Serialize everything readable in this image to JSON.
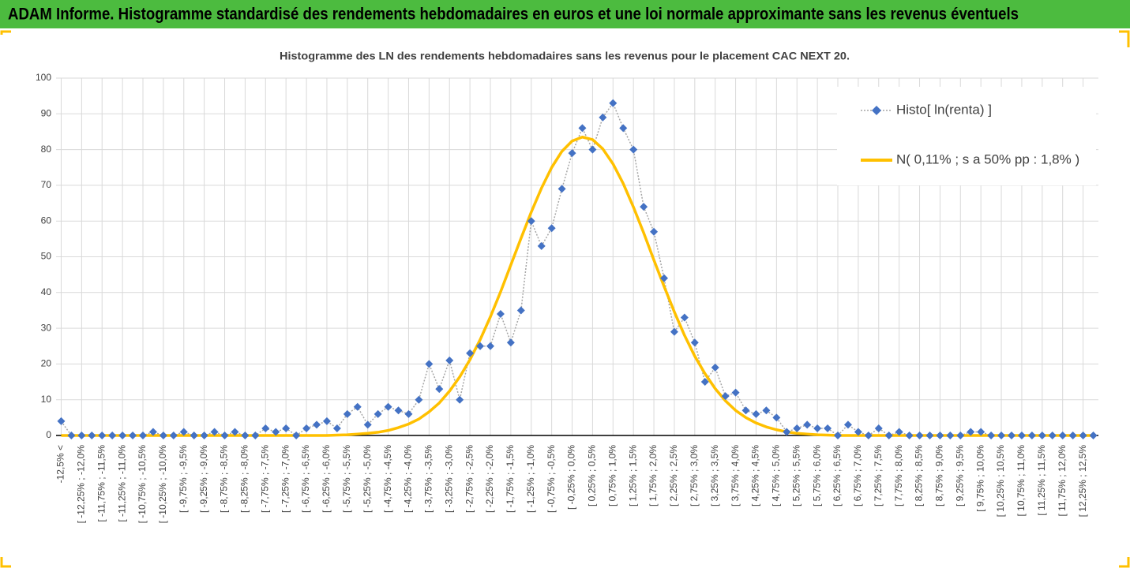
{
  "header": {
    "title": "ADAM Informe. Histogramme standardisé des rendements hebdomadaires en euros et une loi normale approximante sans les revenus éventuels"
  },
  "chart_data": {
    "type": "line",
    "title": "Histogramme des LN des rendements hebdomadaires sans les revenus pour le placement CAC NEXT 20.",
    "categories": [
      "-12,5% <",
      null,
      "[ -12,25% ; -12,0%",
      null,
      "[ -11,75% ; -11,5%",
      null,
      "[ -11,25% ; -11,0%",
      null,
      "[ -10,75% ; -10,5%",
      null,
      "[ -10,25% ; -10,0%",
      null,
      "[ -9,75% ; -9,5%",
      null,
      "[ -9,25% ; -9,0%",
      null,
      "[ -8,75% ; -8,5%",
      null,
      "[ -8,25% ; -8,0%",
      null,
      "[ -7,75% ; -7,5%",
      null,
      "[ -7,25% ; -7,0%",
      null,
      "[ -6,75% ; -6,5%",
      null,
      "[ -6,25% ; -6,0%",
      null,
      "[ -5,75% ; -5,5%",
      null,
      "[ -5,25% ; -5,0%",
      null,
      "[ -4,75% ; -4,5%",
      null,
      "[ -4,25% ; -4,0%",
      null,
      "[ -3,75% ; -3,5%",
      null,
      "[ -3,25% ; -3,0%",
      null,
      "[ -2,75% ; -2,5%",
      null,
      "[ -2,25% ; -2,0%",
      null,
      "[ -1,75% ; -1,5%",
      null,
      "[ -1,25% ; -1,0%",
      null,
      "[ -0,75% ; -0,5%",
      null,
      "[ -0,25% ; 0,0%",
      null,
      "[ 0,25% ; 0,5%",
      null,
      "[ 0,75% ; 1,0%",
      null,
      "[ 1,25% ; 1,5%",
      null,
      "[ 1,75% ; 2,0%",
      null,
      "[ 2,25% ; 2,5%",
      null,
      "[ 2,75% ; 3,0%",
      null,
      "[ 3,25% ; 3,5%",
      null,
      "[ 3,75% ; 4,0%",
      null,
      "[ 4,25% ; 4,5%",
      null,
      "[ 4,75% ; 5,0%",
      null,
      "[ 5,25% ; 5,5%",
      null,
      "[ 5,75% ; 6,0%",
      null,
      "[ 6,25% ; 6,5%",
      null,
      "[ 6,75% ; 7,0%",
      null,
      "[ 7,25% ; 7,5%",
      null,
      "[ 7,75% ; 8,0%",
      null,
      "[ 8,25% ; 8,5%",
      null,
      "[ 8,75% ; 9,0%",
      null,
      "[ 9,25% ; 9,5%",
      null,
      "[ 9,75% ; 10,0%",
      null,
      "[ 10,25% ; 10,5%",
      null,
      "[ 10,75% ; 11,0%",
      null,
      "[ 11,25% ; 11,5%",
      null,
      "[ 11,75% ; 12,0%",
      null,
      "[ 12,25% ; 12,5%",
      null
    ],
    "series": [
      {
        "name": "Histo[ ln(renta) ]",
        "color": "#4472c4",
        "line_color": "#a6a6a6",
        "values": [
          4,
          0,
          0,
          0,
          0,
          0,
          0,
          0,
          0,
          1,
          0,
          0,
          1,
          0,
          0,
          1,
          0,
          1,
          0,
          0,
          2,
          1,
          2,
          0,
          2,
          3,
          4,
          2,
          6,
          8,
          3,
          6,
          8,
          7,
          6,
          10,
          20,
          13,
          21,
          10,
          23,
          25,
          25,
          34,
          26,
          35,
          60,
          53,
          58,
          69,
          79,
          86,
          80,
          89,
          93,
          86,
          80,
          64,
          57,
          44,
          29,
          33,
          26,
          15,
          19,
          11,
          12,
          7,
          6,
          7,
          5,
          1,
          2,
          3,
          2,
          2,
          0,
          3,
          1,
          0,
          2,
          0,
          1,
          0,
          0,
          0,
          0,
          0,
          0,
          1,
          1,
          0,
          0,
          0,
          0,
          0,
          0,
          0,
          0,
          0,
          0,
          0
        ]
      },
      {
        "name": "N( 0,11% ; s a 50% pp : 1,8% )",
        "color": "#ffc000",
        "values": [
          0,
          0,
          0,
          0,
          0,
          0,
          0,
          0,
          0,
          0,
          0,
          0,
          0,
          0,
          0,
          0,
          0,
          0,
          0,
          0,
          0,
          0,
          0,
          0,
          0,
          0,
          0,
          0.1,
          0.2,
          0.4,
          0.6,
          0.9,
          1.4,
          2.2,
          3.2,
          4.6,
          6.6,
          9.1,
          12.4,
          16.4,
          21.2,
          26.8,
          33.2,
          40.2,
          47.7,
          55.2,
          62.5,
          69.2,
          75.0,
          79.5,
          82.4,
          83.5,
          82.8,
          80.2,
          76.0,
          70.5,
          63.9,
          56.7,
          49.1,
          41.7,
          34.6,
          28.0,
          22.2,
          17.3,
          13.1,
          9.7,
          7.0,
          5.0,
          3.5,
          2.4,
          1.6,
          1.0,
          0.6,
          0.4,
          0.2,
          0.1,
          0,
          0,
          0,
          0,
          0,
          0,
          0,
          0,
          0,
          0,
          0,
          0,
          0,
          0,
          0,
          0,
          0,
          0,
          0,
          0,
          0,
          0,
          0,
          0,
          0,
          0
        ]
      }
    ],
    "ylim": [
      0,
      100
    ],
    "yticks": [
      0,
      10,
      20,
      30,
      40,
      50,
      60,
      70,
      80,
      90,
      100
    ],
    "grid": true,
    "legend": "top-right"
  }
}
